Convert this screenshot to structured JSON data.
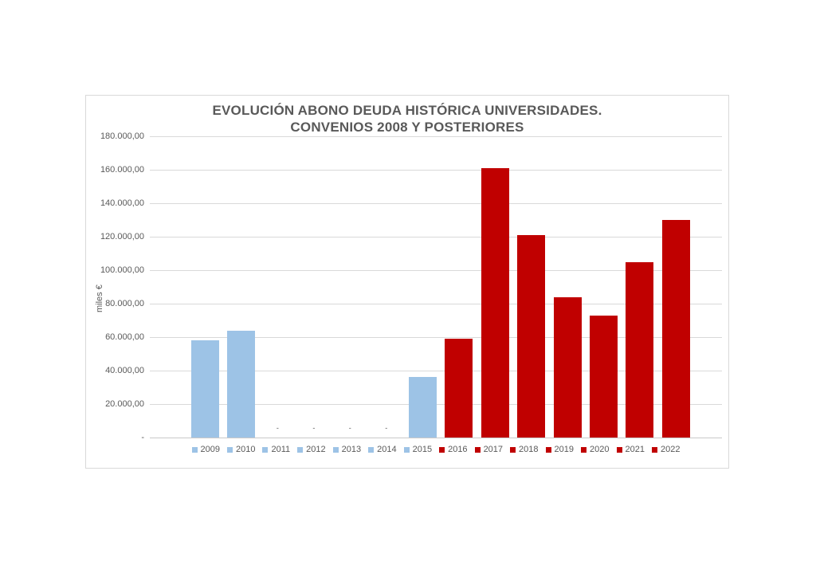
{
  "chart_data": {
    "type": "bar",
    "title": "EVOLUCIÓN ABONO DEUDA HISTÓRICA UNIVERSIDADES. CONVENIOS 2008 Y POSTERIORES",
    "title_lines": [
      "EVOLUCIÓN ABONO DEUDA HISTÓRICA UNIVERSIDADES.",
      "CONVENIOS 2008 Y POSTERIORES"
    ],
    "xlabel": "",
    "ylabel": "miles €",
    "ylim": [
      0,
      180000
    ],
    "grid": true,
    "legend_position": "bottom",
    "zero_display": "-",
    "y_ticks": [
      {
        "value": 180000,
        "label": "180.000,00"
      },
      {
        "value": 160000,
        "label": "160.000,00"
      },
      {
        "value": 140000,
        "label": "140.000,00"
      },
      {
        "value": 120000,
        "label": "120.000,00"
      },
      {
        "value": 100000,
        "label": "100.000,00"
      },
      {
        "value": 80000,
        "label": "80.000,00"
      },
      {
        "value": 60000,
        "label": "60.000,00"
      },
      {
        "value": 40000,
        "label": "40.000,00"
      },
      {
        "value": 20000,
        "label": "20.000,00"
      },
      {
        "value": 0,
        "label": "-"
      }
    ],
    "series": [
      {
        "name": "2009",
        "value": 58000,
        "color": "#9DC3E6"
      },
      {
        "name": "2010",
        "value": 64000,
        "color": "#9DC3E6"
      },
      {
        "name": "2011",
        "value": 0,
        "color": "#9DC3E6"
      },
      {
        "name": "2012",
        "value": 0,
        "color": "#9DC3E6"
      },
      {
        "name": "2013",
        "value": 0,
        "color": "#9DC3E6"
      },
      {
        "name": "2014",
        "value": 0,
        "color": "#9DC3E6"
      },
      {
        "name": "2015",
        "value": 36000,
        "color": "#9DC3E6"
      },
      {
        "name": "2016",
        "value": 59000,
        "color": "#C00000"
      },
      {
        "name": "2017",
        "value": 161000,
        "color": "#C00000"
      },
      {
        "name": "2018",
        "value": 121000,
        "color": "#C00000"
      },
      {
        "name": "2019",
        "value": 84000,
        "color": "#C00000"
      },
      {
        "name": "2020",
        "value": 73000,
        "color": "#C00000"
      },
      {
        "name": "2021",
        "value": 105000,
        "color": "#C00000"
      },
      {
        "name": "2022",
        "value": 130000,
        "color": "#C00000"
      }
    ],
    "colors": {
      "bars_2009_2015": "#9DC3E6",
      "bars_2016_2022": "#C00000",
      "text": "#595959",
      "gridline": "#D9D9D9"
    }
  }
}
